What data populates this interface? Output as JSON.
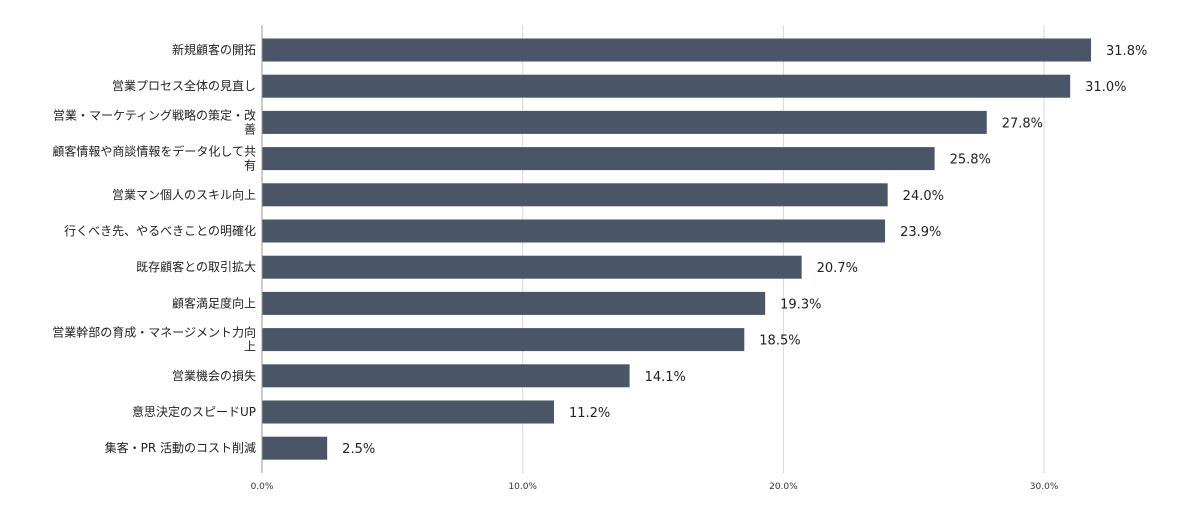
{
  "chart_data": {
    "type": "bar",
    "orientation": "horizontal",
    "title": "",
    "xlabel": "",
    "ylabel": "",
    "categories": [
      "新規顧客の開拓",
      "営業プロセス全体の見直し",
      "営業・マーケティング戦略の策定・改善",
      "顧客情報や商談情報をデータ化して共有",
      "営業マン個人のスキル向上",
      "行くべき先、やるべきことの明確化",
      "既存顧客との取引拡大",
      "顧客満足度向上",
      "営業幹部の育成・マネージメント力向上",
      "営業機会の損失",
      "意思決定のスピードUP",
      "集客・PR 活動のコスト削減"
    ],
    "values": [
      31.8,
      31.0,
      27.8,
      25.8,
      24.0,
      23.9,
      20.7,
      19.3,
      18.5,
      14.1,
      11.2,
      2.5
    ],
    "value_labels": [
      "31.8%",
      "31.0%",
      "27.8%",
      "25.8%",
      "24.0%",
      "23.9%",
      "20.7%",
      "19.3%",
      "18.5%",
      "14.1%",
      "11.2%",
      "2.5%"
    ],
    "xlim": [
      0,
      36
    ],
    "x_ticks": [
      0,
      10,
      20,
      30
    ],
    "x_tick_labels": [
      "0.0%",
      "10.0%",
      "20.0%",
      "30.0%"
    ],
    "grid": "vertical",
    "legend": "none",
    "bar_color": "#4a5568",
    "grid_color": "#d9d9d9",
    "axis_color": "#9a9a9a"
  }
}
